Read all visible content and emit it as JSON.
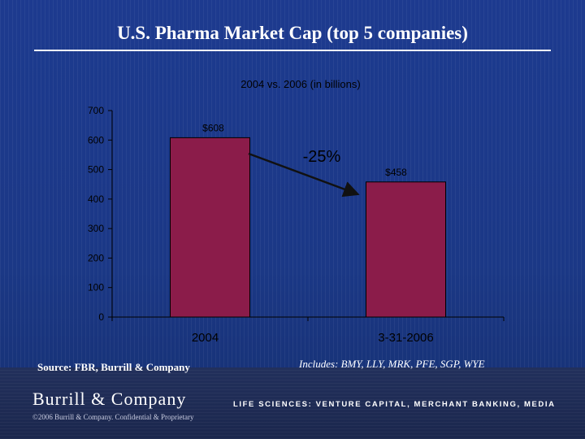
{
  "slide": {
    "title": "U.S. Pharma Market Cap (top 5 companies)",
    "source": "Source: FBR, Burrill & Company",
    "includes": "Includes: BMY, LLY, MRK, PFE, SGP, WYE"
  },
  "chart_data": {
    "type": "bar",
    "title": "2004 vs. 2006 (in billions)",
    "categories": [
      "2004",
      "3-31-2006"
    ],
    "values": [
      608,
      458
    ],
    "data_labels": [
      "$608",
      "$458"
    ],
    "ylim": [
      0,
      700
    ],
    "yticks": [
      0,
      100,
      200,
      300,
      400,
      500,
      600,
      700
    ],
    "ytick_labels": [
      "0",
      "100",
      "200",
      "300",
      "400",
      "500",
      "600",
      "700"
    ],
    "xlabel": "",
    "ylabel": "",
    "annotation": {
      "text": "-25%"
    },
    "grid": false,
    "legend": "none"
  },
  "footer": {
    "logo_text": "Burrill & Company",
    "tagline": "LIFE SCIENCES: VENTURE CAPITAL, MERCHANT BANKING, MEDIA",
    "copyright": "©2006 Burrill & Company. Confidential & Proprietary"
  },
  "colors": {
    "background": "#1b3886",
    "bar_fill": "#8b1c4a",
    "axis_text": "#000000",
    "arrow": "#111111",
    "plot_area": "#1b3886"
  }
}
